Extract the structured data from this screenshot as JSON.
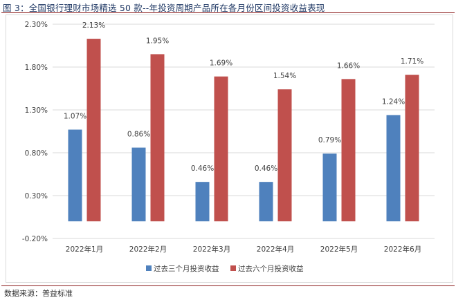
{
  "header": {
    "title": "图 3：全国银行理财市场精选 50 款--年投资周期产品所在各月份区间投资收益表现"
  },
  "footer": {
    "source": "数据来源：普益标准"
  },
  "colors": {
    "series1": "#4f81bd",
    "series2": "#c0504d",
    "grid": "#d9d9d9"
  },
  "chart_data": {
    "type": "bar",
    "title": "",
    "xlabel": "",
    "ylabel": "",
    "categories": [
      "2022年1月",
      "2022年2月",
      "2022年3月",
      "2022年4月",
      "2022年5月",
      "2022年6月"
    ],
    "series": [
      {
        "name": "过去三个月投资收益",
        "values": [
          1.07,
          0.86,
          0.46,
          0.46,
          0.79,
          1.24
        ],
        "labels": [
          "1.07%",
          "0.86%",
          "0.46%",
          "0.46%",
          "0.79%",
          "1.24%"
        ]
      },
      {
        "name": "过去六个月投资收益",
        "values": [
          2.13,
          1.95,
          1.69,
          1.54,
          1.66,
          1.71
        ],
        "labels": [
          "2.13%",
          "1.95%",
          "1.69%",
          "1.54%",
          "1.66%",
          "1.71%"
        ]
      }
    ],
    "yticks": [
      -0.2,
      0.3,
      0.8,
      1.3,
      1.8,
      2.3
    ],
    "ytick_labels": [
      "-0.20%",
      "0.30%",
      "0.80%",
      "1.30%",
      "1.80%",
      "2.30%"
    ],
    "ylim": [
      -0.2,
      2.3
    ],
    "grid": true,
    "legend": "bottom"
  }
}
